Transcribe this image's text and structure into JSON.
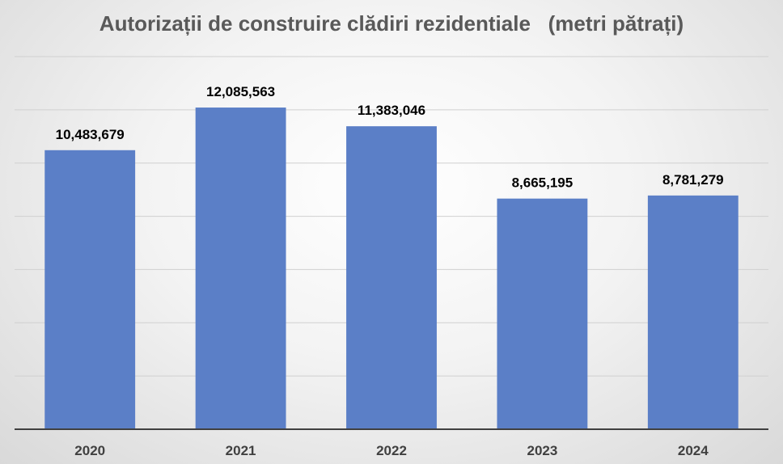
{
  "chart_data": {
    "type": "bar",
    "title": "Autorizații de construire clădiri rezidentiale   (metri pătrați)",
    "xlabel": "",
    "ylabel": "",
    "categories": [
      "2020",
      "2021",
      "2022",
      "2023",
      "2024"
    ],
    "values": [
      10483679,
      12085563,
      11383046,
      8665195,
      8781279
    ],
    "value_labels": [
      "10,483,679",
      "12,085,563",
      "11,383,046",
      "8,665,195",
      "8,781,279"
    ],
    "ylim": [
      0,
      14000000
    ],
    "grid": true,
    "legend": "none",
    "bar_color": "#5b7fc7",
    "axis_color": "#404040",
    "grid_color": "#d0d0d0"
  }
}
